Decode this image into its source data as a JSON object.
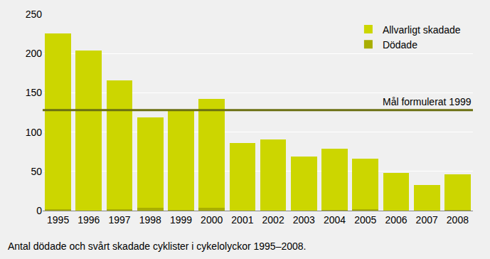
{
  "chart_data": {
    "type": "bar",
    "stacked": true,
    "caption": "Antal dödade och svårt skadade cyklister i cykelolyckor 1995–2008.",
    "categories": [
      "1995",
      "1996",
      "1997",
      "1998",
      "1999",
      "2000",
      "2001",
      "2002",
      "2003",
      "2004",
      "2005",
      "2006",
      "2007",
      "2008"
    ],
    "series": [
      {
        "name": "Allvarligt skadade",
        "color": "#ccd600",
        "values": [
          224,
          204,
          164,
          115,
          128,
          138,
          86,
          91,
          69,
          78,
          64,
          48,
          33,
          45
        ]
      },
      {
        "name": "Dödade",
        "color": "#a8ae00",
        "values": [
          2,
          0,
          2,
          4,
          1,
          4,
          0,
          0,
          0,
          1,
          2,
          0,
          0,
          1
        ]
      }
    ],
    "reference_line": {
      "value": 128,
      "label": "Mål formulerat 1999",
      "color": "#6b7012"
    },
    "ylim": [
      0,
      250
    ],
    "yticks": [
      0,
      50,
      100,
      150,
      200,
      250
    ],
    "grid": true,
    "legend": "upper right"
  }
}
